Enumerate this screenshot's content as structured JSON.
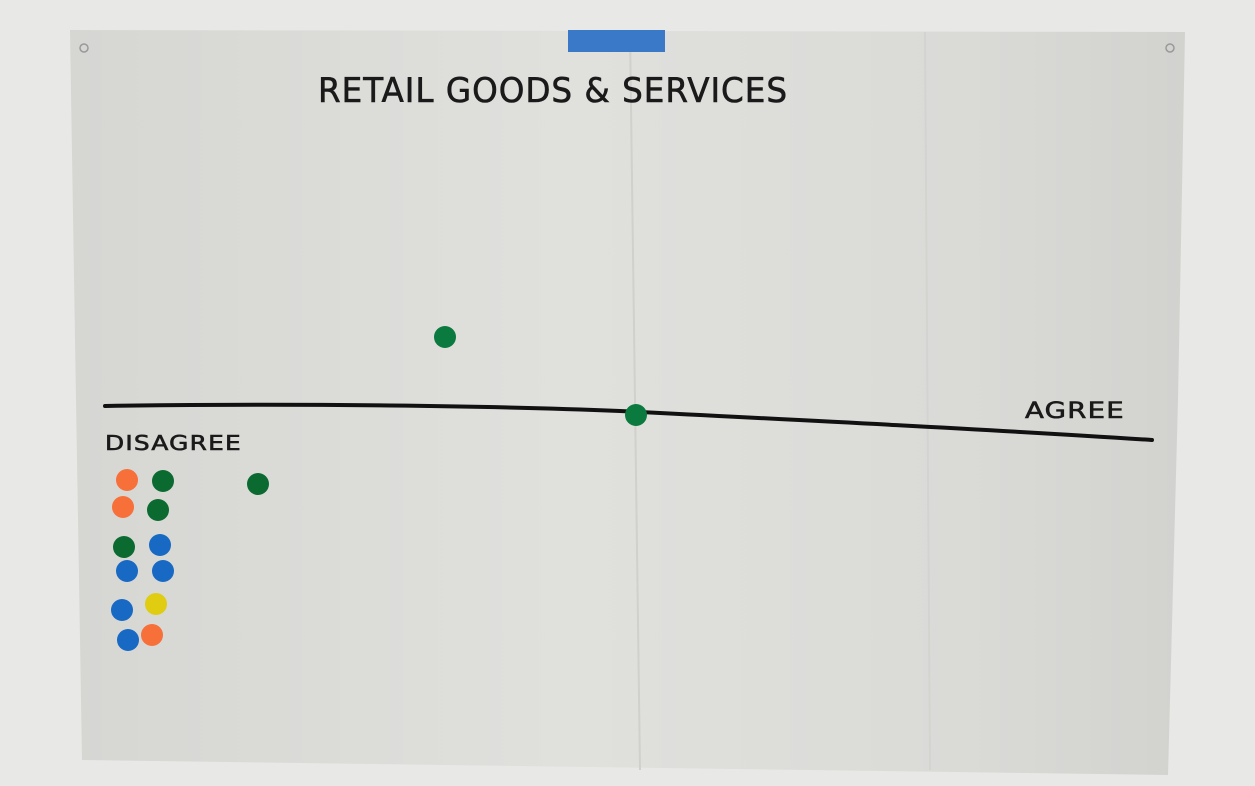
{
  "poster": {
    "title": "RETAIL GOODS & SERVICES",
    "left_label": "DISAGREE",
    "right_label": "AGREE"
  }
}
